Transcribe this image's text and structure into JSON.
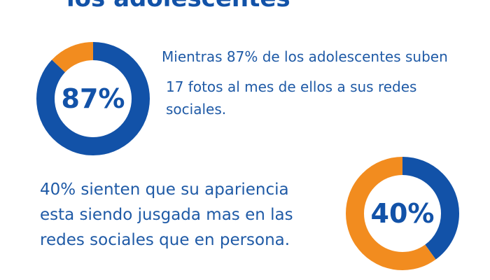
{
  "header": {
    "title_cut": "los adolescentes"
  },
  "blocks": [
    {
      "stat_label": "87%",
      "lines": [
        "Mientras 87% de los adolescentes suben"
      ]
    },
    {
      "lines": [
        "17 fotos al mes de ellos a sus redes",
        "sociales."
      ]
    },
    {
      "stat_label": "40%",
      "lines": [
        "40% sienten que su apariencia",
        "esta siendo jusgada mas en las",
        "redes sociales que en persona."
      ]
    }
  ],
  "colors": {
    "primary": "#1252a8",
    "accent": "#f28c1f",
    "text": "#1f5aa6"
  },
  "chart_data": [
    {
      "type": "pie",
      "values": [
        87,
        13
      ],
      "colors": [
        "#1252a8",
        "#f28c1f"
      ],
      "center_label": "87%"
    },
    {
      "type": "pie",
      "values": [
        40,
        60
      ],
      "colors": [
        "#1252a8",
        "#f28c1f"
      ],
      "center_label": "40%"
    }
  ]
}
